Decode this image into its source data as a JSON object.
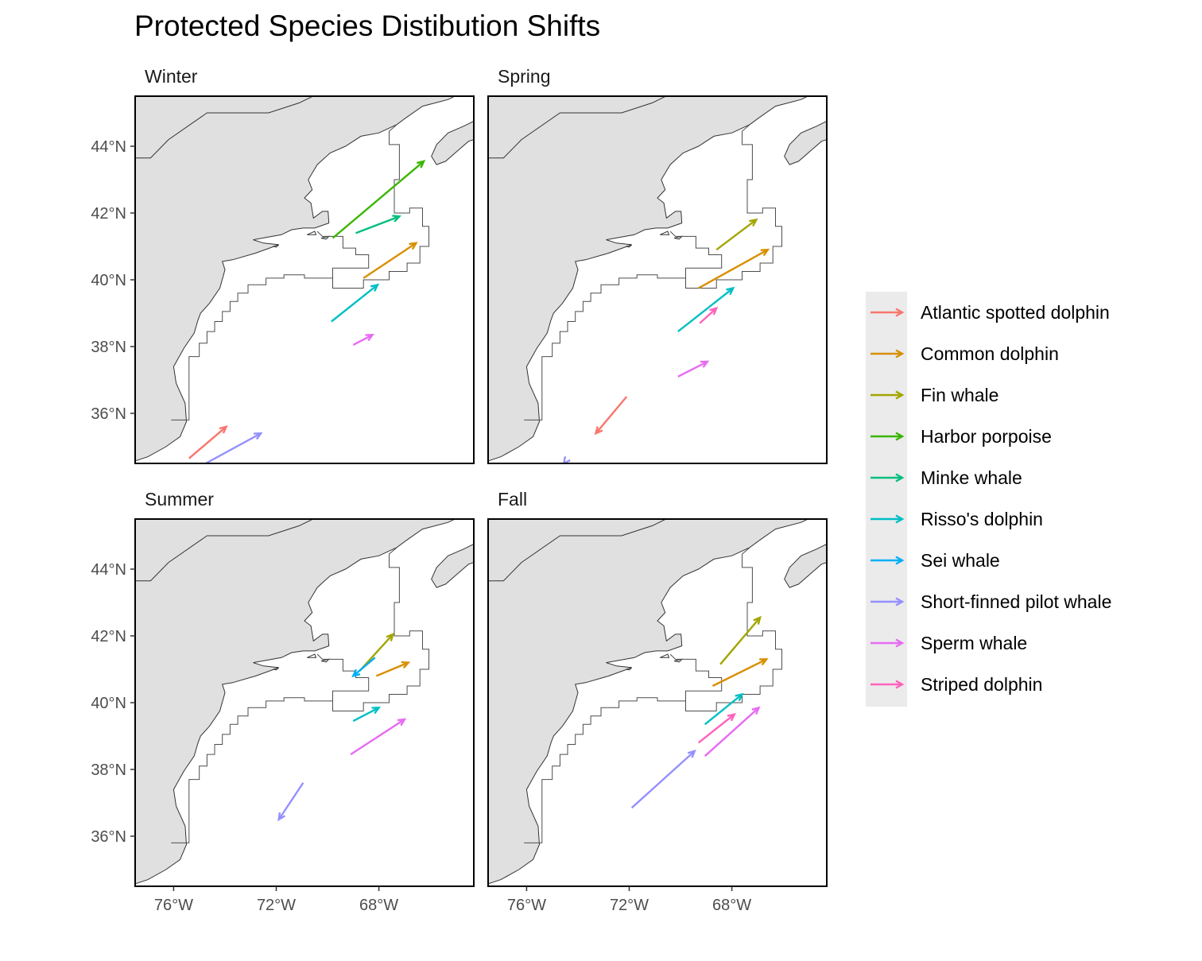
{
  "chart_data": {
    "type": "vector-map",
    "title": "Protected Species Distibution Shifts",
    "facets": [
      "Winter",
      "Spring",
      "Summer",
      "Fall"
    ],
    "xlim": [
      -77.5,
      -64.3
    ],
    "ylim": [
      34.5,
      45.5
    ],
    "x_ticks": [
      -76,
      -72,
      -68
    ],
    "x_tick_labels": [
      "76°W",
      "72°W",
      "68°W"
    ],
    "y_ticks": [
      36,
      38,
      40,
      42,
      44
    ],
    "y_tick_labels": [
      "36°N",
      "38°N",
      "40°N",
      "42°N",
      "44°N"
    ],
    "legend_title": "",
    "legend": [
      {
        "name": "Atlantic spotted dolphin",
        "color": "#F8766D"
      },
      {
        "name": "Common dolphin",
        "color": "#D89000"
      },
      {
        "name": "Fin whale",
        "color": "#A3A500"
      },
      {
        "name": "Harbor porpoise",
        "color": "#39B600"
      },
      {
        "name": "Minke whale",
        "color": "#00BF7D"
      },
      {
        "name": "Risso's dolphin",
        "color": "#00BFC4"
      },
      {
        "name": "Sei whale",
        "color": "#00B0F6"
      },
      {
        "name": "Short-finned pilot whale",
        "color": "#9590FF"
      },
      {
        "name": "Sperm whale",
        "color": "#E76BF3"
      },
      {
        "name": "Striped dolphin",
        "color": "#FF62BC"
      }
    ],
    "series": [
      {
        "facet": "Winter",
        "species": "Harbor porpoise",
        "x0": -69.8,
        "y0": 41.25,
        "x1": -66.25,
        "y1": 43.55
      },
      {
        "facet": "Winter",
        "species": "Minke whale",
        "x0": -68.9,
        "y0": 41.4,
        "x1": -67.2,
        "y1": 41.9
      },
      {
        "facet": "Winter",
        "species": "Common dolphin",
        "x0": -68.6,
        "y0": 40.05,
        "x1": -66.55,
        "y1": 41.1
      },
      {
        "facet": "Winter",
        "species": "Risso's dolphin",
        "x0": -69.85,
        "y0": 38.75,
        "x1": -68.05,
        "y1": 39.85
      },
      {
        "facet": "Winter",
        "species": "Sperm whale",
        "x0": -69.0,
        "y0": 38.05,
        "x1": -68.25,
        "y1": 38.35
      },
      {
        "facet": "Winter",
        "species": "Atlantic spotted dolphin",
        "x0": -75.4,
        "y0": 34.65,
        "x1": -73.95,
        "y1": 35.6
      },
      {
        "facet": "Winter",
        "species": "Short-finned pilot whale",
        "x0": -74.75,
        "y0": 34.5,
        "x1": -72.6,
        "y1": 35.4
      },
      {
        "facet": "Spring",
        "species": "Fin whale",
        "x0": -68.6,
        "y0": 40.9,
        "x1": -67.05,
        "y1": 41.8
      },
      {
        "facet": "Spring",
        "species": "Common dolphin",
        "x0": -69.3,
        "y0": 39.75,
        "x1": -66.6,
        "y1": 40.9
      },
      {
        "facet": "Spring",
        "species": "Risso's dolphin",
        "x0": -70.1,
        "y0": 38.45,
        "x1": -67.95,
        "y1": 39.75
      },
      {
        "facet": "Spring",
        "species": "Striped dolphin",
        "x0": -69.25,
        "y0": 38.7,
        "x1": -68.6,
        "y1": 39.15
      },
      {
        "facet": "Spring",
        "species": "Sperm whale",
        "x0": -70.1,
        "y0": 37.1,
        "x1": -68.95,
        "y1": 37.55
      },
      {
        "facet": "Spring",
        "species": "Atlantic spotted dolphin",
        "x0": -72.1,
        "y0": 36.5,
        "x1": -73.3,
        "y1": 35.4
      },
      {
        "facet": "Spring",
        "species": "Short-finned pilot whale",
        "x0": -74.5,
        "y0": 34.55,
        "x1": -74.55,
        "y1": 34.5
      },
      {
        "facet": "Summer",
        "species": "Fin whale",
        "x0": -68.75,
        "y0": 40.95,
        "x1": -67.45,
        "y1": 42.05
      },
      {
        "facet": "Summer",
        "species": "Sei whale",
        "x0": -68.15,
        "y0": 41.35,
        "x1": -69.0,
        "y1": 40.8
      },
      {
        "facet": "Summer",
        "species": "Common dolphin",
        "x0": -68.1,
        "y0": 40.8,
        "x1": -66.85,
        "y1": 41.2
      },
      {
        "facet": "Summer",
        "species": "Risso's dolphin",
        "x0": -69.0,
        "y0": 39.45,
        "x1": -68.0,
        "y1": 39.85
      },
      {
        "facet": "Summer",
        "species": "Sperm whale",
        "x0": -69.1,
        "y0": 38.45,
        "x1": -67.0,
        "y1": 39.5
      },
      {
        "facet": "Summer",
        "species": "Short-finned pilot whale",
        "x0": -70.95,
        "y0": 37.6,
        "x1": -71.9,
        "y1": 36.5
      },
      {
        "facet": "Fall",
        "species": "Fin whale",
        "x0": -68.45,
        "y0": 41.15,
        "x1": -66.9,
        "y1": 42.55
      },
      {
        "facet": "Fall",
        "species": "Common dolphin",
        "x0": -68.75,
        "y0": 40.5,
        "x1": -66.65,
        "y1": 41.3
      },
      {
        "facet": "Fall",
        "species": "Risso's dolphin",
        "x0": -69.05,
        "y0": 39.35,
        "x1": -67.6,
        "y1": 40.25
      },
      {
        "facet": "Fall",
        "species": "Striped dolphin",
        "x0": -69.3,
        "y0": 38.8,
        "x1": -67.9,
        "y1": 39.65
      },
      {
        "facet": "Fall",
        "species": "Sperm whale",
        "x0": -69.05,
        "y0": 38.4,
        "x1": -66.95,
        "y1": 39.85
      },
      {
        "facet": "Fall",
        "species": "Short-finned pilot whale",
        "x0": -71.9,
        "y0": 36.85,
        "x1": -69.45,
        "y1": 38.55
      }
    ]
  }
}
